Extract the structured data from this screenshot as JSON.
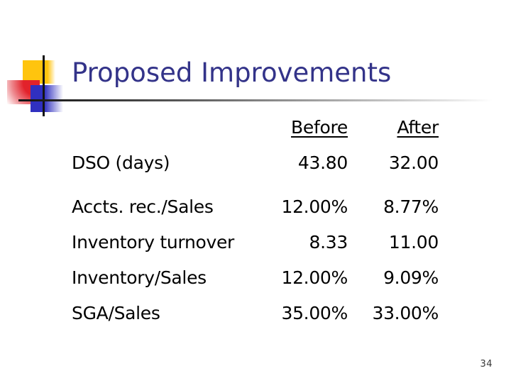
{
  "title": "Proposed Improvements",
  "page_number": "34",
  "table": {
    "columns": [
      "Before",
      "After"
    ],
    "rows": [
      {
        "label": "DSO (days)",
        "before": "43.80",
        "after": "32.00"
      },
      {
        "label": "Accts. rec./Sales",
        "before": "12.00%",
        "after": "8.77%"
      },
      {
        "label": "Inventory turnover",
        "before": "8.33",
        "after": "11.00"
      },
      {
        "label": "Inventory/Sales",
        "before": "12.00%",
        "after": "9.09%"
      },
      {
        "label": "SGA/Sales",
        "before": "35.00%",
        "after": "33.00%"
      }
    ]
  },
  "colors": {
    "title_text": "#333389",
    "body_text": "#000000",
    "logo_yellow": "#ffc40e",
    "logo_red": "#e2222b",
    "logo_blue": "#3030c0",
    "rule_dark": "#121212"
  }
}
